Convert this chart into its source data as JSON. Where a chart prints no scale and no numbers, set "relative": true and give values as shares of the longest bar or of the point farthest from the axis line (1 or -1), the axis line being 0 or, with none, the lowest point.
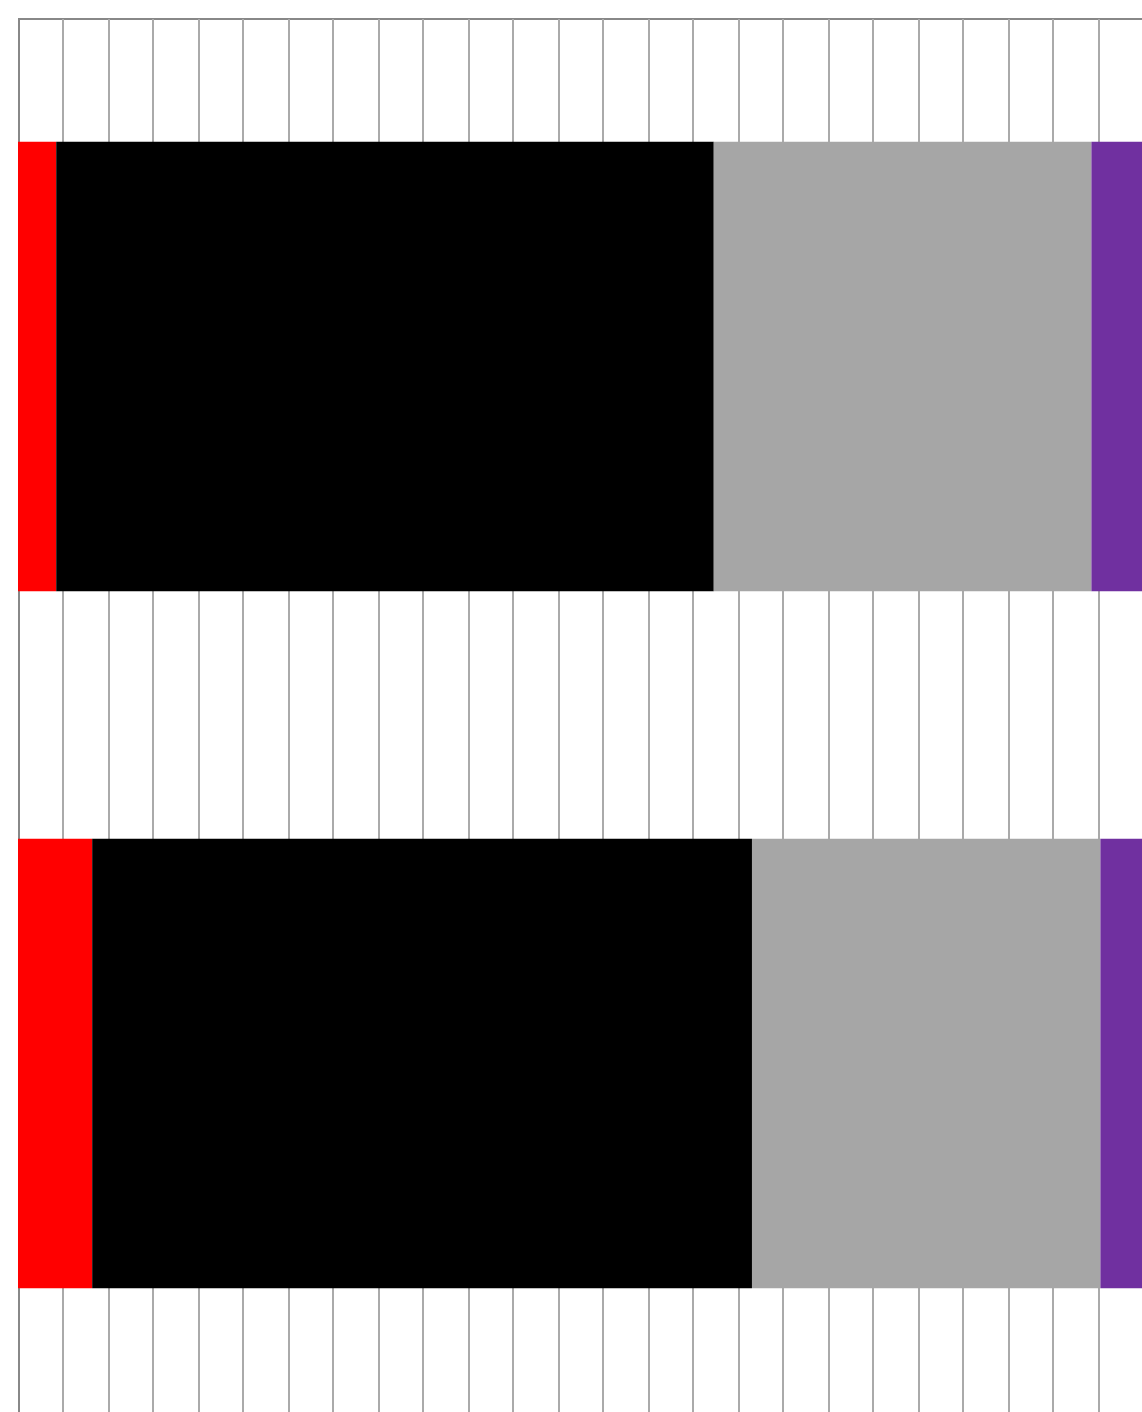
{
  "chart_data": {
    "type": "bar",
    "orientation": "horizontal",
    "stacked": true,
    "relative": true,
    "grid": "x",
    "categories": [
      null,
      null
    ],
    "series": [
      {
        "color": "#ff0000",
        "values": [
          0.034,
          0.066
        ]
      },
      {
        "color": "#000000",
        "values": [
          0.585,
          0.587
        ]
      },
      {
        "color": "#a6a6a6",
        "values": [
          0.336,
          0.31
        ]
      },
      {
        "color": "#7030a0",
        "values": [
          0.045,
          0.037
        ]
      }
    ]
  }
}
